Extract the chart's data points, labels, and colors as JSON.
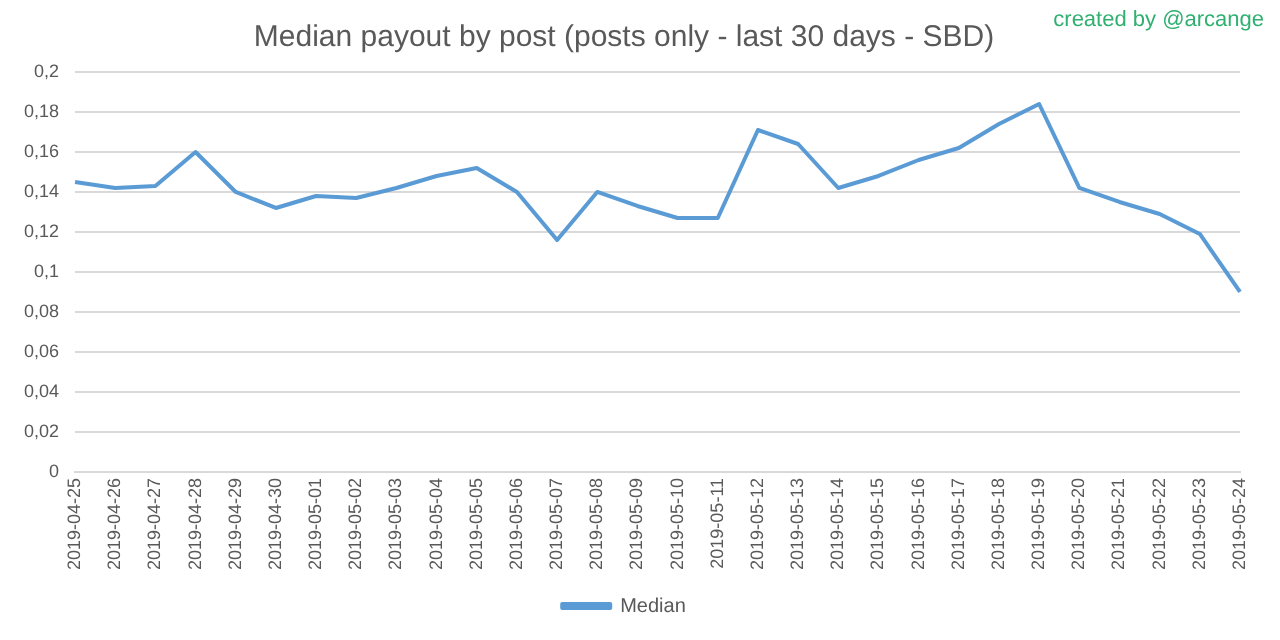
{
  "chart_data": {
    "type": "line",
    "title": "Median payout by post (posts only - last 30 days - SBD)",
    "annotations": [
      "created by @arcange"
    ],
    "categories": [
      "2019-04-25",
      "2019-04-26",
      "2019-04-27",
      "2019-04-28",
      "2019-04-29",
      "2019-04-30",
      "2019-05-01",
      "2019-05-02",
      "2019-05-03",
      "2019-05-04",
      "2019-05-05",
      "2019-05-06",
      "2019-05-07",
      "2019-05-08",
      "2019-05-09",
      "2019-05-10",
      "2019-05-11",
      "2019-05-12",
      "2019-05-13",
      "2019-05-14",
      "2019-05-15",
      "2019-05-16",
      "2019-05-17",
      "2019-05-18",
      "2019-05-19",
      "2019-05-20",
      "2019-05-21",
      "2019-05-22",
      "2019-05-23",
      "2019-05-24"
    ],
    "series": [
      {
        "name": "Median",
        "color": "#5b9bd5",
        "values": [
          0.145,
          0.142,
          0.143,
          0.16,
          0.14,
          0.132,
          0.138,
          0.137,
          0.142,
          0.148,
          0.152,
          0.14,
          0.116,
          0.14,
          0.133,
          0.127,
          0.127,
          0.171,
          0.164,
          0.142,
          0.148,
          0.156,
          0.162,
          0.174,
          0.184,
          0.142,
          0.135,
          0.129,
          0.119,
          0.09
        ]
      }
    ],
    "ylim": [
      0,
      0.2
    ],
    "yticks": [
      0,
      {
        "value": 0.02,
        "label": "0,02"
      },
      {
        "value": 0.04,
        "label": "0,04"
      },
      {
        "value": 0.06,
        "label": "0,06"
      },
      {
        "value": 0.08,
        "label": "0,08"
      },
      {
        "value": 0.1,
        "label": "0,1"
      },
      {
        "value": 0.12,
        "label": "0,12"
      },
      {
        "value": 0.14,
        "label": "0,14"
      },
      {
        "value": 0.16,
        "label": "0,16"
      },
      {
        "value": 0.18,
        "label": "0,18"
      },
      {
        "value": 0.2,
        "label": "0,2"
      }
    ],
    "grid": "y",
    "legend": "bottom",
    "marker": "none",
    "line_style": "solid"
  }
}
